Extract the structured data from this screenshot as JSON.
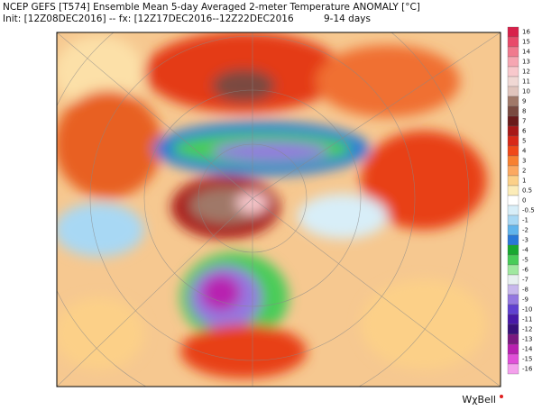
{
  "header": {
    "title": "NCEP GEFS [T574] Ensemble Mean 5-day Averaged 2-meter Temperature ANOMALY [°C]",
    "subtitle": "Init: [12Z08DEC2016] -- fx: [12Z17DEC2016--12Z22DEC2016          9-14 days"
  },
  "legend": {
    "labels": [
      "16",
      "15",
      "14",
      "13",
      "12",
      "11",
      "10",
      "9",
      "8",
      "7",
      "6",
      "5",
      "4",
      "3",
      "2",
      "1",
      "0.5",
      "0",
      "-0.5",
      "-1",
      "-2",
      "-3",
      "-4",
      "-5",
      "-6",
      "-7",
      "-8",
      "-9",
      "-10",
      "-11",
      "-12",
      "-13",
      "-14",
      "-15",
      "-16"
    ],
    "colors": [
      "#d8204a",
      "#e84a6a",
      "#f07a8e",
      "#f6a6b2",
      "#f8c8cc",
      "#f0d8d4",
      "#e0c4bc",
      "#a07868",
      "#7a4a40",
      "#6a1a1a",
      "#a81818",
      "#d82818",
      "#f04818",
      "#f88030",
      "#fca860",
      "#fcd088",
      "#fcecb8",
      "#ffffff",
      "#d8eef8",
      "#a8d8f4",
      "#60b4ec",
      "#2878d8",
      "#18a830",
      "#48cc58",
      "#a0e8a0",
      "#e8f0f0",
      "#c8b8ec",
      "#9478e0",
      "#6040d0",
      "#4818a8",
      "#38107a",
      "#7a1880",
      "#b820b0",
      "#e050d8",
      "#f4a0ec"
    ]
  },
  "credit": "WχBell"
}
